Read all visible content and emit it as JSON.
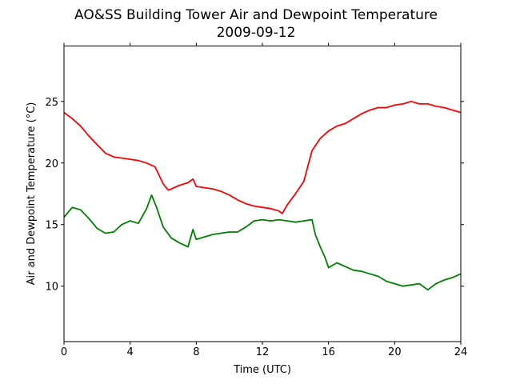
{
  "chart_data": {
    "type": "line",
    "title": "AO&SS Building Tower Air and Dewpoint Temperature",
    "subtitle": "2009-09-12",
    "xlabel": "Time (UTC)",
    "ylabel": "Air and Dewpoint Temperature (°C)",
    "xlim": [
      0,
      24
    ],
    "ylim": [
      5.5,
      29.5
    ],
    "xticks": [
      0,
      4,
      8,
      12,
      16,
      20,
      24
    ],
    "yticks": [
      10,
      15,
      20,
      25
    ],
    "grid": false,
    "legend": "none",
    "series": [
      {
        "color": "#ff0000",
        "x": [
          0,
          0.5,
          1,
          1.5,
          2,
          2.5,
          3,
          3.5,
          4,
          4.5,
          5,
          5.5,
          6,
          6.3,
          6.5,
          7,
          7.5,
          7.8,
          8,
          8.5,
          9,
          9.5,
          10,
          10.5,
          11,
          11.5,
          12,
          12.5,
          13,
          13.2,
          13.5,
          14,
          14.5,
          15,
          15.5,
          16,
          16.5,
          17,
          17.5,
          18,
          18.5,
          19,
          19.5,
          20,
          20.5,
          21,
          21.5,
          22,
          22.5,
          23,
          23.5,
          24
        ],
        "y": [
          24.1,
          23.6,
          23.0,
          22.2,
          21.5,
          20.8,
          20.5,
          20.4,
          20.3,
          20.2,
          20.0,
          19.7,
          18.3,
          17.8,
          17.9,
          18.2,
          18.4,
          18.7,
          18.1,
          18.0,
          17.9,
          17.7,
          17.4,
          17.0,
          16.7,
          16.5,
          16.4,
          16.3,
          16.1,
          15.9,
          16.6,
          17.5,
          18.5,
          21.0,
          22.0,
          22.6,
          23.0,
          23.2,
          23.6,
          24.0,
          24.3,
          24.5,
          24.5,
          24.7,
          24.8,
          25.0,
          24.8,
          24.8,
          24.6,
          24.5,
          24.3,
          24.1
        ]
      },
      {
        "color": "#008000",
        "x": [
          0,
          0.5,
          1,
          1.5,
          2,
          2.5,
          3,
          3.5,
          4,
          4.5,
          5,
          5.3,
          5.6,
          6,
          6.5,
          7,
          7.5,
          7.8,
          8,
          8.5,
          9,
          9.5,
          10,
          10.5,
          11,
          11.5,
          12,
          12.5,
          13,
          13.5,
          14,
          14.5,
          15,
          15.2,
          15.5,
          15.8,
          16,
          16.5,
          17,
          17.5,
          18,
          18.5,
          19,
          19.5,
          20,
          20.5,
          21,
          21.5,
          22,
          22.5,
          23,
          23.5,
          24
        ],
        "y": [
          15.6,
          16.4,
          16.2,
          15.5,
          14.7,
          14.3,
          14.4,
          15.0,
          15.3,
          15.1,
          16.3,
          17.4,
          16.4,
          14.8,
          13.9,
          13.5,
          13.2,
          14.6,
          13.8,
          14.0,
          14.2,
          14.3,
          14.4,
          14.4,
          14.8,
          15.3,
          15.4,
          15.3,
          15.4,
          15.3,
          15.2,
          15.3,
          15.4,
          14.2,
          13.2,
          12.3,
          11.5,
          11.9,
          11.6,
          11.3,
          11.2,
          11.0,
          10.8,
          10.4,
          10.2,
          10.0,
          10.1,
          10.2,
          9.7,
          10.2,
          10.5,
          10.7,
          11.0
        ]
      }
    ]
  }
}
